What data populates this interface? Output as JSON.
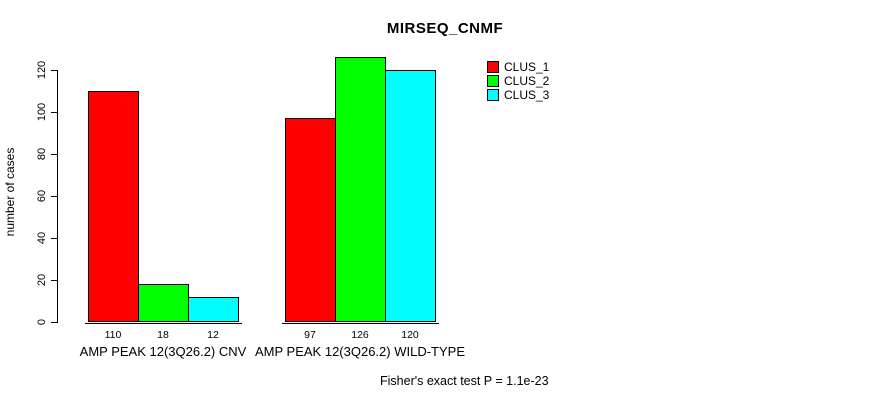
{
  "chart_data": {
    "type": "bar",
    "title": "MIRSEQ_CNMF",
    "ylabel": "number of cases",
    "xlabel": "",
    "ylim": [
      0,
      126
    ],
    "yticks": [
      0,
      20,
      40,
      60,
      80,
      100,
      120
    ],
    "categories": [
      "AMP PEAK 12(3Q26.2) CNV",
      "AMP PEAK 12(3Q26.2) WILD-TYPE"
    ],
    "series": [
      {
        "name": "CLUS_1",
        "color": "#FF0000",
        "values": [
          110,
          97
        ]
      },
      {
        "name": "CLUS_2",
        "color": "#00FF00",
        "values": [
          18,
          126
        ]
      },
      {
        "name": "CLUS_3",
        "color": "#00FFFF",
        "values": [
          12,
          120
        ]
      }
    ],
    "annotation": "Fisher's exact test P = 1.1e-23",
    "legend_position": "top-right",
    "grid": false
  }
}
